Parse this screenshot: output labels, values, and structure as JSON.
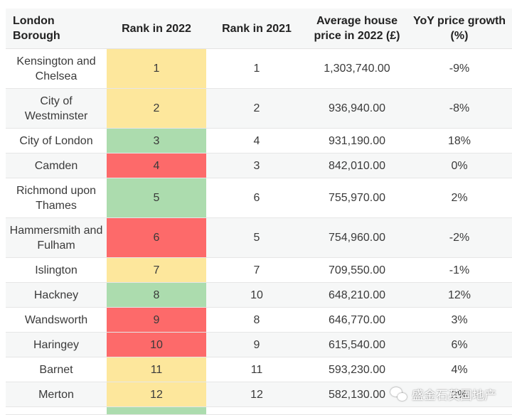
{
  "headers": {
    "borough": "London Borough",
    "rank2022": "Rank in 2022",
    "rank2021": "Rank in 2021",
    "price": "Average house price in 2022 (£)",
    "growth": "YoY price growth (%)"
  },
  "colors": {
    "yellow": "#fde79c",
    "green": "#acdcae",
    "red": "#fd6a6a"
  },
  "rows": [
    {
      "borough": "Kensington and Chelsea",
      "rank2022": "1",
      "rank2021": "1",
      "price": "1,303,740.00",
      "growth": "-9%",
      "color": "yellow",
      "tall": true
    },
    {
      "borough": "City of Westminster",
      "rank2022": "2",
      "rank2021": "2",
      "price": "936,940.00",
      "growth": "-8%",
      "color": "yellow",
      "tall": true
    },
    {
      "borough": "City of London",
      "rank2022": "3",
      "rank2021": "4",
      "price": "931,190.00",
      "growth": "18%",
      "color": "green",
      "tall": false
    },
    {
      "borough": "Camden",
      "rank2022": "4",
      "rank2021": "3",
      "price": "842,010.00",
      "growth": "0%",
      "color": "red",
      "tall": false
    },
    {
      "borough": "Richmond upon Thames",
      "rank2022": "5",
      "rank2021": "6",
      "price": "755,970.00",
      "growth": "2%",
      "color": "green",
      "tall": true
    },
    {
      "borough": "Hammersmith and Fulham",
      "rank2022": "6",
      "rank2021": "5",
      "price": "754,960.00",
      "growth": "-2%",
      "color": "red",
      "tall": true
    },
    {
      "borough": "Islington",
      "rank2022": "7",
      "rank2021": "7",
      "price": "709,550.00",
      "growth": "-1%",
      "color": "yellow",
      "tall": false
    },
    {
      "borough": "Hackney",
      "rank2022": "8",
      "rank2021": "10",
      "price": "648,210.00",
      "growth": "12%",
      "color": "green",
      "tall": false
    },
    {
      "borough": "Wandsworth",
      "rank2022": "9",
      "rank2021": "8",
      "price": "646,770.00",
      "growth": "3%",
      "color": "red",
      "tall": false
    },
    {
      "borough": "Haringey",
      "rank2022": "10",
      "rank2021": "9",
      "price": "615,540.00",
      "growth": "6%",
      "color": "red",
      "tall": false
    },
    {
      "borough": "Barnet",
      "rank2022": "11",
      "rank2021": "11",
      "price": "593,230.00",
      "growth": "4%",
      "color": "yellow",
      "tall": false
    },
    {
      "borough": "Merton",
      "rank2022": "12",
      "rank2021": "12",
      "price": "582,130.00",
      "growth": "2%",
      "color": "yellow",
      "tall": false
    }
  ],
  "partial_row_color": "green",
  "watermark": {
    "text": "盛金石英国地产",
    "icon": "wechat-icon"
  }
}
